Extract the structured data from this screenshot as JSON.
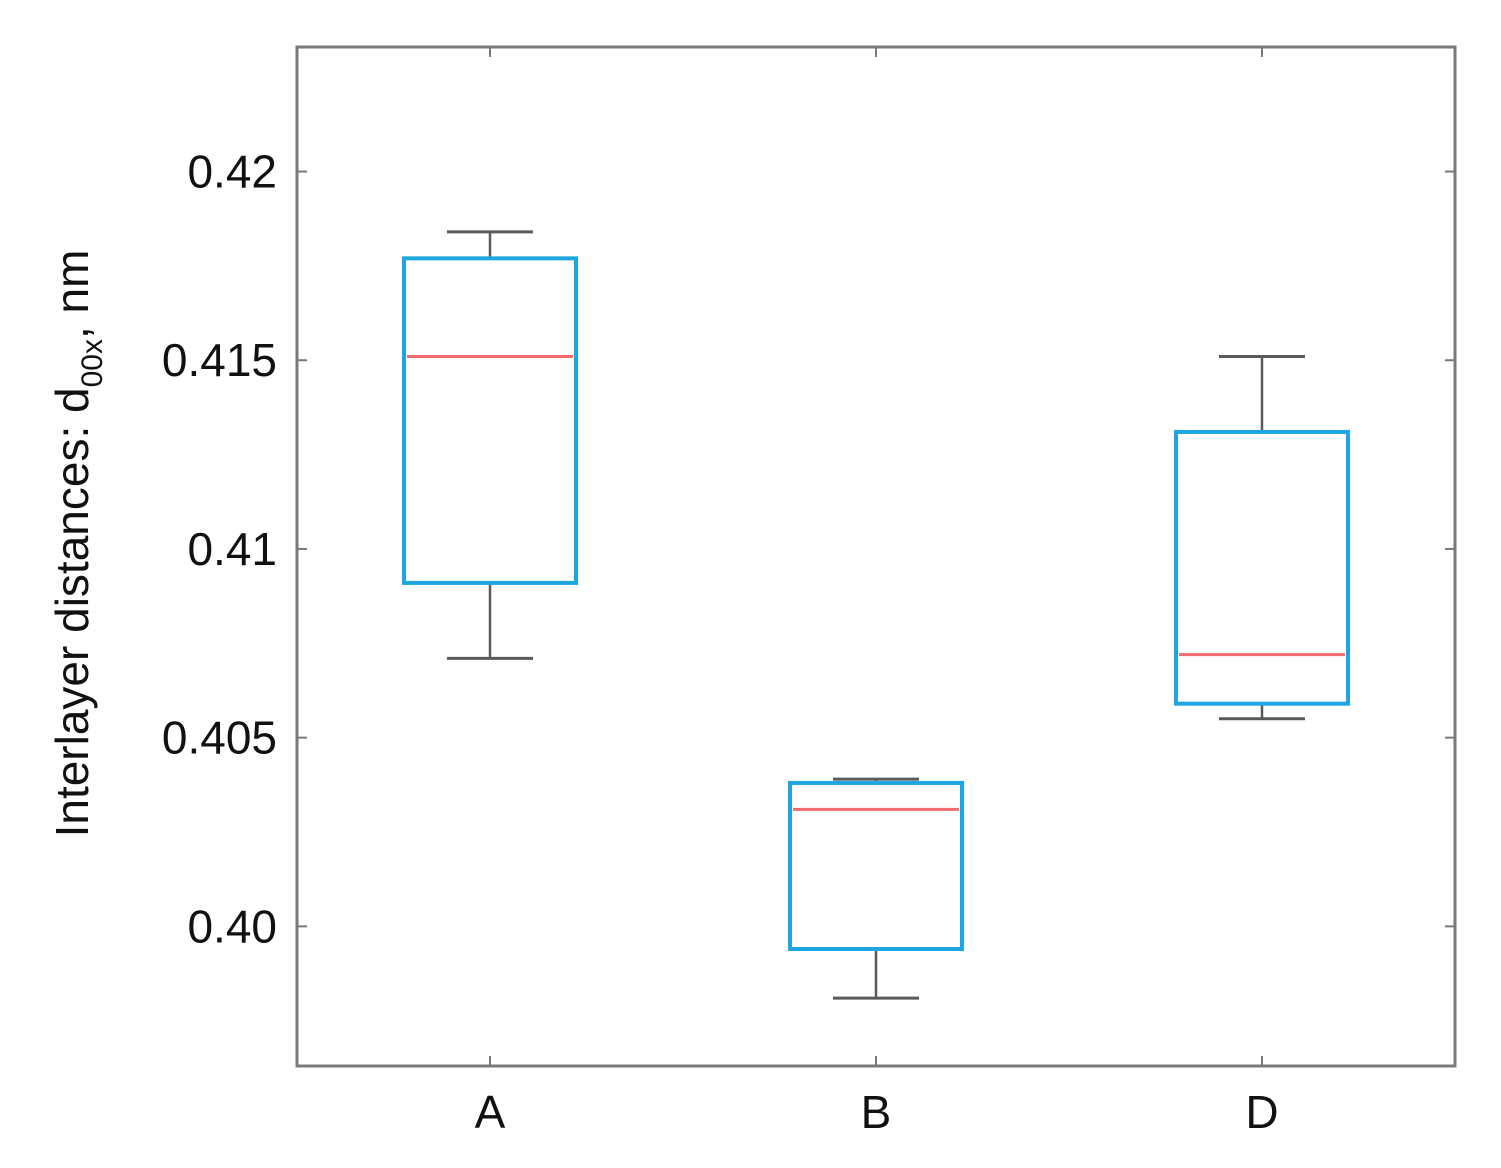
{
  "chart_data": {
    "type": "box",
    "categories": [
      "A",
      "B",
      "D"
    ],
    "ylabel": {
      "prefix": "Interlayer distances: d",
      "subscript": "00x",
      "suffix": ", nm"
    },
    "ylim": [
      0.3963,
      0.4233
    ],
    "yticks": [
      {
        "value": 0.4,
        "label": "0.40"
      },
      {
        "value": 0.405,
        "label": "0.405"
      },
      {
        "value": 0.41,
        "label": "0.41"
      },
      {
        "value": 0.415,
        "label": "0.415"
      },
      {
        "value": 0.42,
        "label": "0.42"
      }
    ],
    "boxes": [
      {
        "category": "A",
        "whisker_low": 0.4071,
        "q1": 0.4091,
        "median": 0.4151,
        "q3": 0.4177,
        "whisker_high": 0.4184
      },
      {
        "category": "B",
        "whisker_low": 0.3981,
        "q1": 0.3994,
        "median": 0.4031,
        "q3": 0.4038,
        "whisker_high": 0.4039
      },
      {
        "category": "D",
        "whisker_low": 0.4055,
        "q1": 0.4059,
        "median": 0.4072,
        "q3": 0.4131,
        "whisker_high": 0.4151
      }
    ],
    "grid": false,
    "legend": "none",
    "colors": {
      "box": "#1ea6e0",
      "median": "#f26a6a",
      "whisker": "#5a5a5a",
      "axis": "#7a7a7a"
    }
  }
}
